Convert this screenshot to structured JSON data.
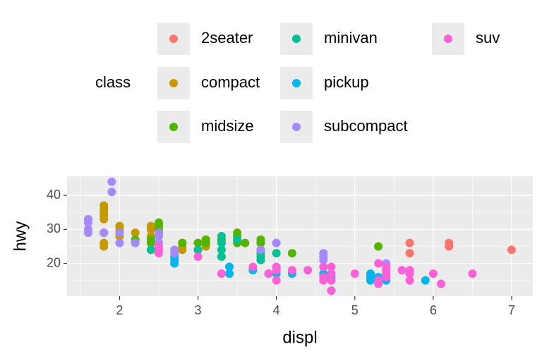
{
  "chart_data": {
    "type": "scatter",
    "x_label": "displ",
    "y_label": "hwy",
    "legend_title": "class",
    "legend": "top",
    "xlim": [
      1.33,
      7.27
    ],
    "ylim": [
      10.4,
      45.6
    ],
    "xticks": [
      2,
      3,
      4,
      5,
      6,
      7
    ],
    "yticks": [
      20,
      30,
      40
    ],
    "x_minor_ticks": [
      1.5,
      2.5,
      3.5,
      4.5,
      5.5,
      6.5
    ],
    "y_minor_ticks": [
      15,
      25,
      35,
      45
    ],
    "grid": true,
    "series": [
      {
        "name": "2seater",
        "color": "#F8766D",
        "x": [
          5.7,
          5.7,
          6.2,
          6.2,
          7
        ],
        "values": [
          26,
          23,
          26,
          25,
          24
        ]
      },
      {
        "name": "compact",
        "color": "#C49A00",
        "x": [
          1.8,
          1.8,
          2,
          2,
          2.8,
          2.8,
          3.1,
          1.8,
          1.8,
          2,
          2,
          2.8,
          3.1,
          1.8,
          1.8,
          1.8,
          1.8,
          1.8,
          2.4,
          2.4,
          2.4,
          2.2,
          2.2,
          2.5,
          2.5,
          3,
          3.3,
          2.4
        ],
        "values": [
          29,
          29,
          31,
          30,
          26,
          25,
          27,
          26,
          25,
          28,
          29,
          24,
          25,
          33,
          35,
          37,
          36,
          34,
          31,
          30,
          27,
          29,
          26,
          29,
          26,
          26,
          26,
          28
        ]
      },
      {
        "name": "midsize",
        "color": "#53B400",
        "x": [
          2.5,
          2.5,
          2.5,
          2,
          2.4,
          2.5,
          3.3,
          3.5,
          3.6,
          3.8,
          3,
          2.8,
          3.1,
          1.8,
          2,
          5.3,
          3.5,
          3.1,
          3.8,
          2.2,
          2.4,
          4.2,
          2.4,
          3.5
        ],
        "values": [
          32,
          31,
          30,
          29,
          26,
          29,
          27,
          28,
          26,
          26,
          26,
          26,
          26,
          29,
          29,
          25,
          29,
          27,
          27,
          27,
          27,
          23,
          24,
          26
        ]
      },
      {
        "name": "minivan",
        "color": "#00C094",
        "x": [
          2.4,
          3,
          3.3,
          3.3,
          3.3,
          3.8,
          3.8,
          3.8,
          4,
          3.8,
          3.5,
          3.3
        ],
        "values": [
          24,
          24,
          22,
          24,
          28,
          22,
          21,
          23,
          23,
          24,
          27,
          26
        ]
      },
      {
        "name": "pickup",
        "color": "#00B6EB",
        "x": [
          2.7,
          2.7,
          3.7,
          3.9,
          4.7,
          4.7,
          5.2,
          5.2,
          5.7,
          5.9,
          4.2,
          4.6,
          5.4,
          5.4,
          3.4,
          3.4,
          4,
          4,
          4.7,
          5.2,
          2.7,
          4.6,
          5.3
        ],
        "values": [
          20,
          22,
          18,
          17,
          17,
          16,
          15,
          16,
          17,
          15,
          17,
          17,
          15,
          17,
          19,
          17,
          18,
          17,
          12,
          17,
          21,
          16,
          16
        ]
      },
      {
        "name": "subcompact",
        "color": "#A58AFF",
        "x": [
          1.6,
          1.6,
          1.6,
          1.8,
          1.9,
          1.9,
          2,
          2,
          2.2,
          2.5,
          2.5,
          2.7,
          4,
          4.6,
          4.6,
          2.5,
          2.7,
          3.8,
          4.6,
          5.4,
          1.6
        ],
        "values": [
          33,
          32,
          29,
          29,
          44,
          41,
          26,
          29,
          26,
          28,
          26,
          24,
          26,
          23,
          22,
          29,
          23,
          24,
          21,
          20,
          30
        ]
      },
      {
        "name": "suv",
        "color": "#FB61D7",
        "x": [
          5.3,
          5.3,
          5.7,
          6.5,
          4.2,
          4.4,
          5.3,
          4,
          4.7,
          5.7,
          6,
          6.1,
          4.6,
          5.4,
          4.7,
          5.4,
          4.7,
          3.7,
          4,
          4.7,
          5,
          5.4,
          2.5,
          2.5,
          3,
          3.3,
          3.9,
          4.6,
          5.7,
          5.6,
          4.6,
          5.4,
          4,
          2.5
        ],
        "values": [
          20,
          15,
          17,
          17,
          18,
          18,
          14,
          19,
          19,
          18,
          17,
          14,
          16,
          17,
          12,
          18,
          15,
          19,
          15,
          17,
          17,
          16,
          23,
          25,
          22,
          17,
          17,
          19,
          15,
          18,
          15,
          19,
          18,
          24
        ]
      }
    ]
  }
}
